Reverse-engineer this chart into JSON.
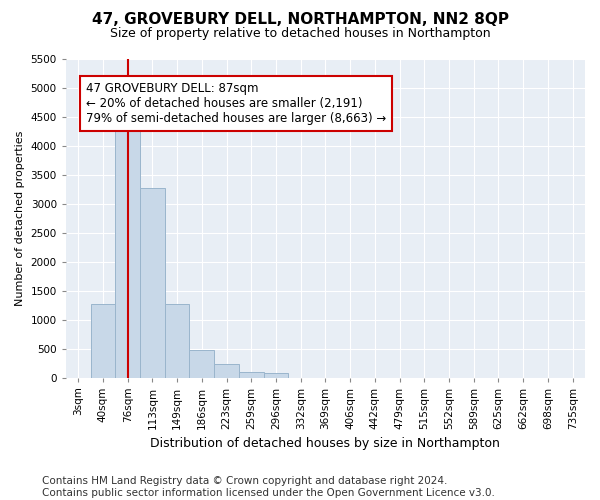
{
  "title": "47, GROVEBURY DELL, NORTHAMPTON, NN2 8QP",
  "subtitle": "Size of property relative to detached houses in Northampton",
  "xlabel": "Distribution of detached houses by size in Northampton",
  "ylabel": "Number of detached properties",
  "categories": [
    "3sqm",
    "40sqm",
    "76sqm",
    "113sqm",
    "149sqm",
    "186sqm",
    "223sqm",
    "259sqm",
    "296sqm",
    "332sqm",
    "369sqm",
    "406sqm",
    "442sqm",
    "479sqm",
    "515sqm",
    "552sqm",
    "589sqm",
    "625sqm",
    "662sqm",
    "698sqm",
    "735sqm"
  ],
  "values": [
    0,
    1270,
    4350,
    3280,
    1270,
    480,
    240,
    100,
    75,
    0,
    0,
    0,
    0,
    0,
    0,
    0,
    0,
    0,
    0,
    0,
    0
  ],
  "bar_color": "#c8d8e8",
  "bar_edge_color": "#9ab5cc",
  "vline_x": 2,
  "vline_color": "#cc0000",
  "annotation_text": "47 GROVEBURY DELL: 87sqm\n← 20% of detached houses are smaller (2,191)\n79% of semi-detached houses are larger (8,663) →",
  "annotation_box_color": "white",
  "annotation_box_edge_color": "#cc0000",
  "ylim": [
    0,
    5500
  ],
  "yticks": [
    0,
    500,
    1000,
    1500,
    2000,
    2500,
    3000,
    3500,
    4000,
    4500,
    5000,
    5500
  ],
  "footer": "Contains HM Land Registry data © Crown copyright and database right 2024.\nContains public sector information licensed under the Open Government Licence v3.0.",
  "fig_bg_color": "#ffffff",
  "plot_bg_color": "#e8eef5",
  "grid_color": "#ffffff",
  "title_fontsize": 11,
  "subtitle_fontsize": 9,
  "xlabel_fontsize": 9,
  "ylabel_fontsize": 8,
  "tick_fontsize": 7.5,
  "footer_fontsize": 7.5,
  "ann_fontsize": 8.5
}
